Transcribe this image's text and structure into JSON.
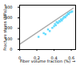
{
  "chart_data": {
    "type": "scatter",
    "xlabel": "Fiber volume fraction (%)",
    "ylabel": "Fracture stress (MPa)",
    "series": [
      {
        "type": "line",
        "color": "#aaaaaa",
        "x": [
          0.0,
          0.62
        ],
        "values": [
          50,
          390
        ]
      },
      {
        "type": "scatter",
        "color": "#66ddff",
        "marker": "square",
        "x": [
          0.22,
          0.28,
          0.3,
          0.33,
          0.35,
          0.38,
          0.4,
          0.41,
          0.42,
          0.43,
          0.44,
          0.45,
          0.46,
          0.47,
          0.48,
          0.49,
          0.5,
          0.51,
          0.52,
          0.53,
          0.54,
          0.55,
          0.56,
          0.57,
          0.58,
          0.6,
          0.61
        ],
        "values": [
          120,
          155,
          145,
          190,
          175,
          205,
          220,
          240,
          230,
          260,
          250,
          255,
          270,
          265,
          285,
          275,
          290,
          300,
          310,
          305,
          320,
          325,
          340,
          335,
          350,
          355,
          360
        ]
      }
    ],
    "xlim": [
      0,
      0.65
    ],
    "ylim": [
      0,
      420
    ],
    "xticks": [
      0,
      0.2,
      0.4,
      0.6
    ],
    "yticks": [
      0,
      100,
      200,
      300,
      400
    ]
  }
}
